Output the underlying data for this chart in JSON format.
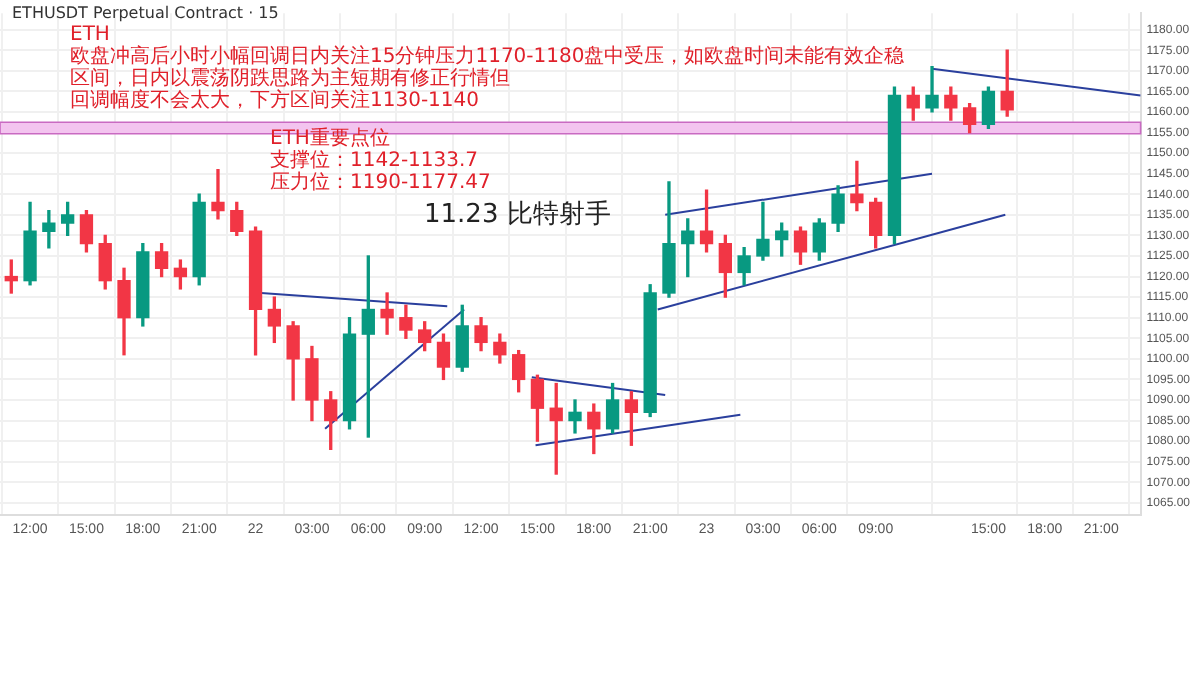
{
  "chart_data": {
    "type": "candlestick",
    "title": "ETHUSDT Perpetual Contract · 15",
    "annotations": [
      "ETH",
      "欧盘冲高后小时小幅回调日内关注15分钟压力1170-1180盘中受压，如欧盘时间未能有效企稳区间，日内以震荡阴跌思路为主短期有修正行情但",
      "回调幅度不会太大，下方区间关注1130-1140",
      "ETH重要点位",
      "支撑位：1142-1133.7",
      "压力位：1190-1177.47",
      "11.23 比特射手"
    ],
    "x": [
      "--11-21T11:00",
      "--11-21T12:00",
      "--11-21T13:00",
      "--11-21T14:00",
      "--11-21T15:00",
      "--11-21T16:00",
      "--11-21T17:00",
      "--11-21T18:00",
      "--11-21T19:00",
      "--11-21T20:00",
      "--11-21T21:00",
      "--11-21T22:00",
      "--11-21T23:00",
      "--11-22T00:00",
      "--11-22T01:00",
      "--11-22T02:00",
      "--11-22T03:00",
      "--11-22T04:00",
      "--11-22T05:00",
      "--11-22T06:00",
      "--11-22T07:00",
      "--11-22T08:00",
      "--11-22T09:00",
      "--11-22T10:00",
      "--11-22T11:00",
      "--11-22T12:00",
      "--11-22T13:00",
      "--11-22T14:00",
      "--11-22T15:00",
      "--11-22T16:00",
      "--11-22T17:00",
      "--11-22T18:00",
      "--11-22T19:00",
      "--11-22T20:00",
      "--11-22T21:00",
      "--11-22T22:00",
      "--11-22T23:00",
      "--11-23T00:00",
      "--11-23T01:00",
      "--11-23T02:00",
      "--11-23T03:00",
      "--11-23T04:00",
      "--11-23T05:00",
      "--11-23T06:00",
      "--11-23T07:00",
      "--11-23T08:00",
      "--11-23T09:00",
      "--11-23T10:00",
      "--11-23T11:00",
      "--11-23T12:00",
      "--11-23T13:00",
      "--11-23T14:00",
      "--11-23T15:00",
      "--11-23T16:00"
    ],
    "ohlc": [
      [
        1120,
        1124,
        1116,
        1119
      ],
      [
        1119,
        1138,
        1118,
        1131
      ],
      [
        1131,
        1136,
        1127,
        1133
      ],
      [
        1133,
        1138,
        1130,
        1135
      ],
      [
        1135,
        1136,
        1126,
        1128
      ],
      [
        1128,
        1130,
        1117,
        1119
      ],
      [
        1119,
        1122,
        1101,
        1110
      ],
      [
        1110,
        1128,
        1108,
        1126
      ],
      [
        1126,
        1128,
        1120,
        1122
      ],
      [
        1122,
        1124,
        1117,
        1120
      ],
      [
        1120,
        1140,
        1118,
        1138
      ],
      [
        1138,
        1146,
        1134,
        1136
      ],
      [
        1136,
        1138,
        1130,
        1131
      ],
      [
        1131,
        1132,
        1101,
        1112
      ],
      [
        1112,
        1115,
        1104,
        1108
      ],
      [
        1108,
        1109,
        1090,
        1100
      ],
      [
        1100,
        1103,
        1085,
        1090
      ],
      [
        1090,
        1092,
        1078,
        1085
      ],
      [
        1085,
        1110,
        1083,
        1106
      ],
      [
        1106,
        1125,
        1081,
        1112
      ],
      [
        1112,
        1116,
        1106,
        1110
      ],
      [
        1110,
        1113,
        1105,
        1107
      ],
      [
        1107,
        1109,
        1102,
        1104
      ],
      [
        1104,
        1106,
        1095,
        1098
      ],
      [
        1098,
        1113,
        1097,
        1108
      ],
      [
        1108,
        1110,
        1102,
        1104
      ],
      [
        1104,
        1106,
        1099,
        1101
      ],
      [
        1101,
        1102,
        1092,
        1095
      ],
      [
        1095,
        1096,
        1080,
        1088
      ],
      [
        1088,
        1094,
        1072,
        1085
      ],
      [
        1085,
        1090,
        1082,
        1087
      ],
      [
        1087,
        1089,
        1077,
        1083
      ],
      [
        1083,
        1094,
        1082,
        1090
      ],
      [
        1090,
        1092,
        1079,
        1087
      ],
      [
        1087,
        1118,
        1086,
        1116
      ],
      [
        1116,
        1143,
        1115,
        1128
      ],
      [
        1128,
        1134,
        1120,
        1131
      ],
      [
        1131,
        1141,
        1126,
        1128
      ],
      [
        1128,
        1130,
        1115,
        1121
      ],
      [
        1121,
        1127,
        1118,
        1125
      ],
      [
        1125,
        1138,
        1124,
        1129
      ],
      [
        1129,
        1133,
        1125,
        1131
      ],
      [
        1131,
        1132,
        1123,
        1126
      ],
      [
        1126,
        1134,
        1124,
        1133
      ],
      [
        1133,
        1142,
        1131,
        1140
      ],
      [
        1140,
        1148,
        1136,
        1138
      ],
      [
        1138,
        1139,
        1127,
        1130
      ],
      [
        1130,
        1166,
        1128,
        1164
      ],
      [
        1164,
        1166,
        1158,
        1161
      ],
      [
        1161,
        1171,
        1160,
        1164
      ],
      [
        1164,
        1166,
        1158,
        1161
      ],
      [
        1161,
        1162,
        1155,
        1157
      ],
      [
        1157,
        1166,
        1156,
        1165
      ],
      [
        1165,
        1175,
        1159,
        1160.5
      ]
    ],
    "colors": [
      "#f23645",
      "#089981",
      "#089981",
      "#089981",
      "#f23645",
      "#f23645",
      "#f23645",
      "#089981",
      "#f23645",
      "#f23645",
      "#089981",
      "#f23645",
      "#f23645",
      "#f23645",
      "#f23645",
      "#f23645",
      "#f23645",
      "#f23645",
      "#089981",
      "#089981",
      "#f23645",
      "#f23645",
      "#f23645",
      "#f23645",
      "#089981",
      "#f23645",
      "#f23645",
      "#f23645",
      "#f23645",
      "#f23645",
      "#089981",
      "#f23645",
      "#089981",
      "#f23645",
      "#089981",
      "#089981",
      "#089981",
      "#f23645",
      "#f23645",
      "#089981",
      "#089981",
      "#089981",
      "#f23645",
      "#089981",
      "#089981",
      "#f23645",
      "#f23645",
      "#089981",
      "#f23645",
      "#089981",
      "#f23645",
      "#f23645",
      "#089981",
      "#f23645"
    ],
    "series": [
      {
        "type": "line",
        "color": "#2a3f9d",
        "x": [
          "--11-22T00:18",
          "--11-22T10:12"
        ],
        "values": [
          1116,
          1112.8
        ]
      },
      {
        "type": "line",
        "color": "#2a3f9d",
        "x": [
          "--11-22T03:42",
          "--11-22T11:06"
        ],
        "values": [
          1083,
          1112
        ]
      },
      {
        "type": "line",
        "color": "#2a3f9d",
        "x": [
          "--11-22T14:42",
          "--11-22T21:48"
        ],
        "values": [
          1095.5,
          1091.2
        ]
      },
      {
        "type": "line",
        "color": "#2a3f9d",
        "x": [
          "--11-22T14:54",
          "--11-23T01:48"
        ],
        "values": [
          1079,
          1086.4
        ]
      },
      {
        "type": "line",
        "color": "#2a3f9d",
        "x": [
          "--11-22T21:48",
          "--11-23T12:00"
        ],
        "values": [
          1135,
          1145
        ]
      },
      {
        "type": "line",
        "color": "#2a3f9d",
        "x": [
          "--11-22T21:24",
          "--11-23T15:54"
        ],
        "values": [
          1112,
          1135
        ]
      },
      {
        "type": "line",
        "color": "#2a3f9d",
        "x": [
          "--11-23T12:00",
          "--11-23T23:06"
        ],
        "values": [
          1170.5,
          1164
        ]
      }
    ],
    "bands": [
      {
        "axis": "y",
        "from": 1154.7,
        "to": 1157.5,
        "color": "#f3c4ef"
      }
    ],
    "xlim": [
      "--11-21T10:24",
      "--11-23T23:06"
    ],
    "xticks": [
      {
        "value": "--11-21T12:00",
        "label": "12:00"
      },
      {
        "value": "--11-21T15:00",
        "label": "15:00"
      },
      {
        "value": "--11-21T18:00",
        "label": "18:00"
      },
      {
        "value": "--11-21T21:00",
        "label": "21:00"
      },
      {
        "value": "--11-22T00:00",
        "label": "22"
      },
      {
        "value": "--11-22T03:00",
        "label": "03:00"
      },
      {
        "value": "--11-22T06:00",
        "label": "06:00"
      },
      {
        "value": "--11-22T09:00",
        "label": "09:00"
      },
      {
        "value": "--11-22T12:00",
        "label": "12:00"
      },
      {
        "value": "--11-22T15:00",
        "label": "15:00"
      },
      {
        "value": "--11-22T18:00",
        "label": "18:00"
      },
      {
        "value": "--11-22T21:00",
        "label": "21:00"
      },
      {
        "value": "--11-23T00:00",
        "label": "23"
      },
      {
        "value": "--11-23T03:00",
        "label": "03:00"
      },
      {
        "value": "--11-23T06:00",
        "label": "06:00"
      },
      {
        "value": "--11-23T09:00",
        "label": "09:00"
      },
      {
        "value": "--11-23T15:00",
        "label": "15:00"
      },
      {
        "value": "--11-23T18:00",
        "label": "18:00"
      },
      {
        "value": "--11-23T21:00",
        "label": "21:00"
      }
    ],
    "ylim": [
      1062,
      1184
    ],
    "yticks": [
      {
        "value": 1065,
        "label": "1065.00"
      },
      {
        "value": 1070,
        "label": "1070.00"
      },
      {
        "value": 1075,
        "label": "1075.00"
      },
      {
        "value": 1080,
        "label": "1080.00"
      },
      {
        "value": 1085,
        "label": "1085.00"
      },
      {
        "value": 1090,
        "label": "1090.00"
      },
      {
        "value": 1095,
        "label": "1095.00"
      },
      {
        "value": 1100,
        "label": "1100.00"
      },
      {
        "value": 1105,
        "label": "1105.00"
      },
      {
        "value": 1110,
        "label": "1110.00"
      },
      {
        "value": 1115,
        "label": "1115.00"
      },
      {
        "value": 1120,
        "label": "1120.00"
      },
      {
        "value": 1125,
        "label": "1125.00"
      },
      {
        "value": 1130,
        "label": "1130.00"
      },
      {
        "value": 1135,
        "label": "1135.00"
      },
      {
        "value": 1140,
        "label": "1140.00"
      },
      {
        "value": 1145,
        "label": "1145.00"
      },
      {
        "value": 1150,
        "label": "1150.00"
      },
      {
        "value": 1155,
        "label": "1155.00"
      },
      {
        "value": 1160,
        "label": "1160.00"
      },
      {
        "value": 1165,
        "label": "1165.00"
      },
      {
        "value": 1170,
        "label": "1170.00"
      },
      {
        "value": 1175,
        "label": "1175.00"
      },
      {
        "value": 1180,
        "label": "1180.00"
      }
    ],
    "grid": true,
    "legend": false
  }
}
